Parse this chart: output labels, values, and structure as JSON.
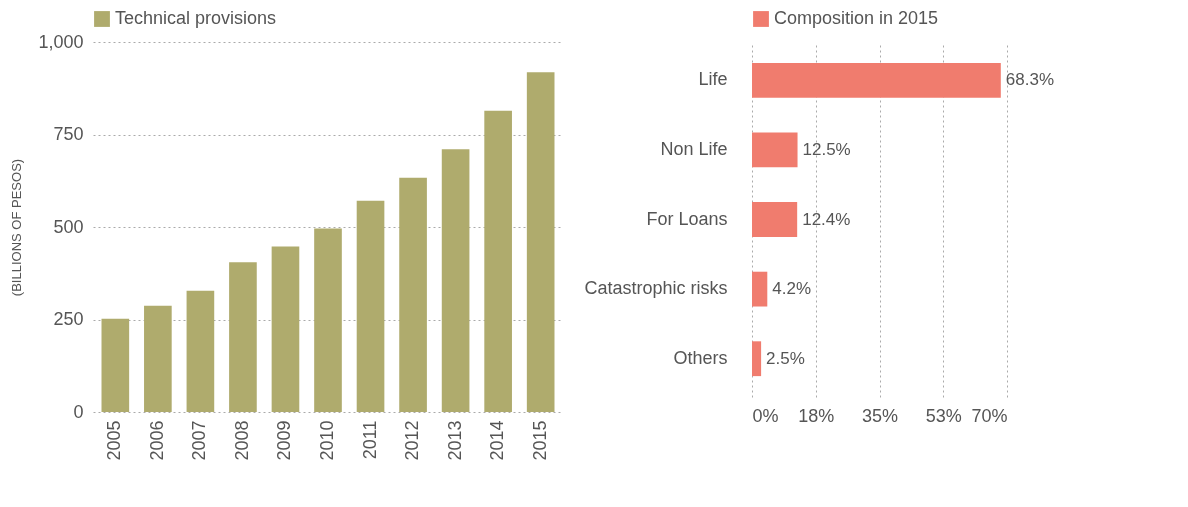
{
  "chart_data": [
    {
      "type": "bar",
      "ylabel": "(BILLIONS OF PESOS)",
      "categories": [
        "2005",
        "2006",
        "2007",
        "2008",
        "2009",
        "2010",
        "2011",
        "2012",
        "2013",
        "2014",
        "2015"
      ],
      "series": [
        {
          "name": "Technical provisions",
          "color": "#afab6d",
          "values": [
            252,
            287,
            328,
            405,
            447,
            496,
            571,
            633,
            710,
            814,
            918
          ]
        }
      ],
      "ylim": [
        0,
        1000
      ],
      "yticks": [
        0,
        250,
        500,
        750,
        {
          "value": 1000,
          "label": "1,000"
        }
      ],
      "grid": "y",
      "legend": "top"
    },
    {
      "type": "bar",
      "orientation": "horizontal",
      "categories": [
        "Life",
        "Non Life",
        "For Loans",
        "Catastrophic risks",
        "Others"
      ],
      "series": [
        {
          "name": "Composition in 2015",
          "color": "#f07c6e",
          "values": [
            68.3,
            12.5,
            12.4,
            4.2,
            2.5
          ],
          "value_labels": [
            "68.3%",
            "12.5%",
            "12.4%",
            "4.2%",
            "2.5%"
          ]
        }
      ],
      "xlim": [
        0,
        70
      ],
      "xticks": [
        {
          "value": 0,
          "label": "0%"
        },
        {
          "value": 17.5,
          "label": "18%"
        },
        {
          "value": 35,
          "label": "35%"
        },
        {
          "value": 52.5,
          "label": "53%"
        },
        {
          "value": 70,
          "label": "70%"
        }
      ],
      "grid": "x",
      "legend": "top"
    }
  ]
}
